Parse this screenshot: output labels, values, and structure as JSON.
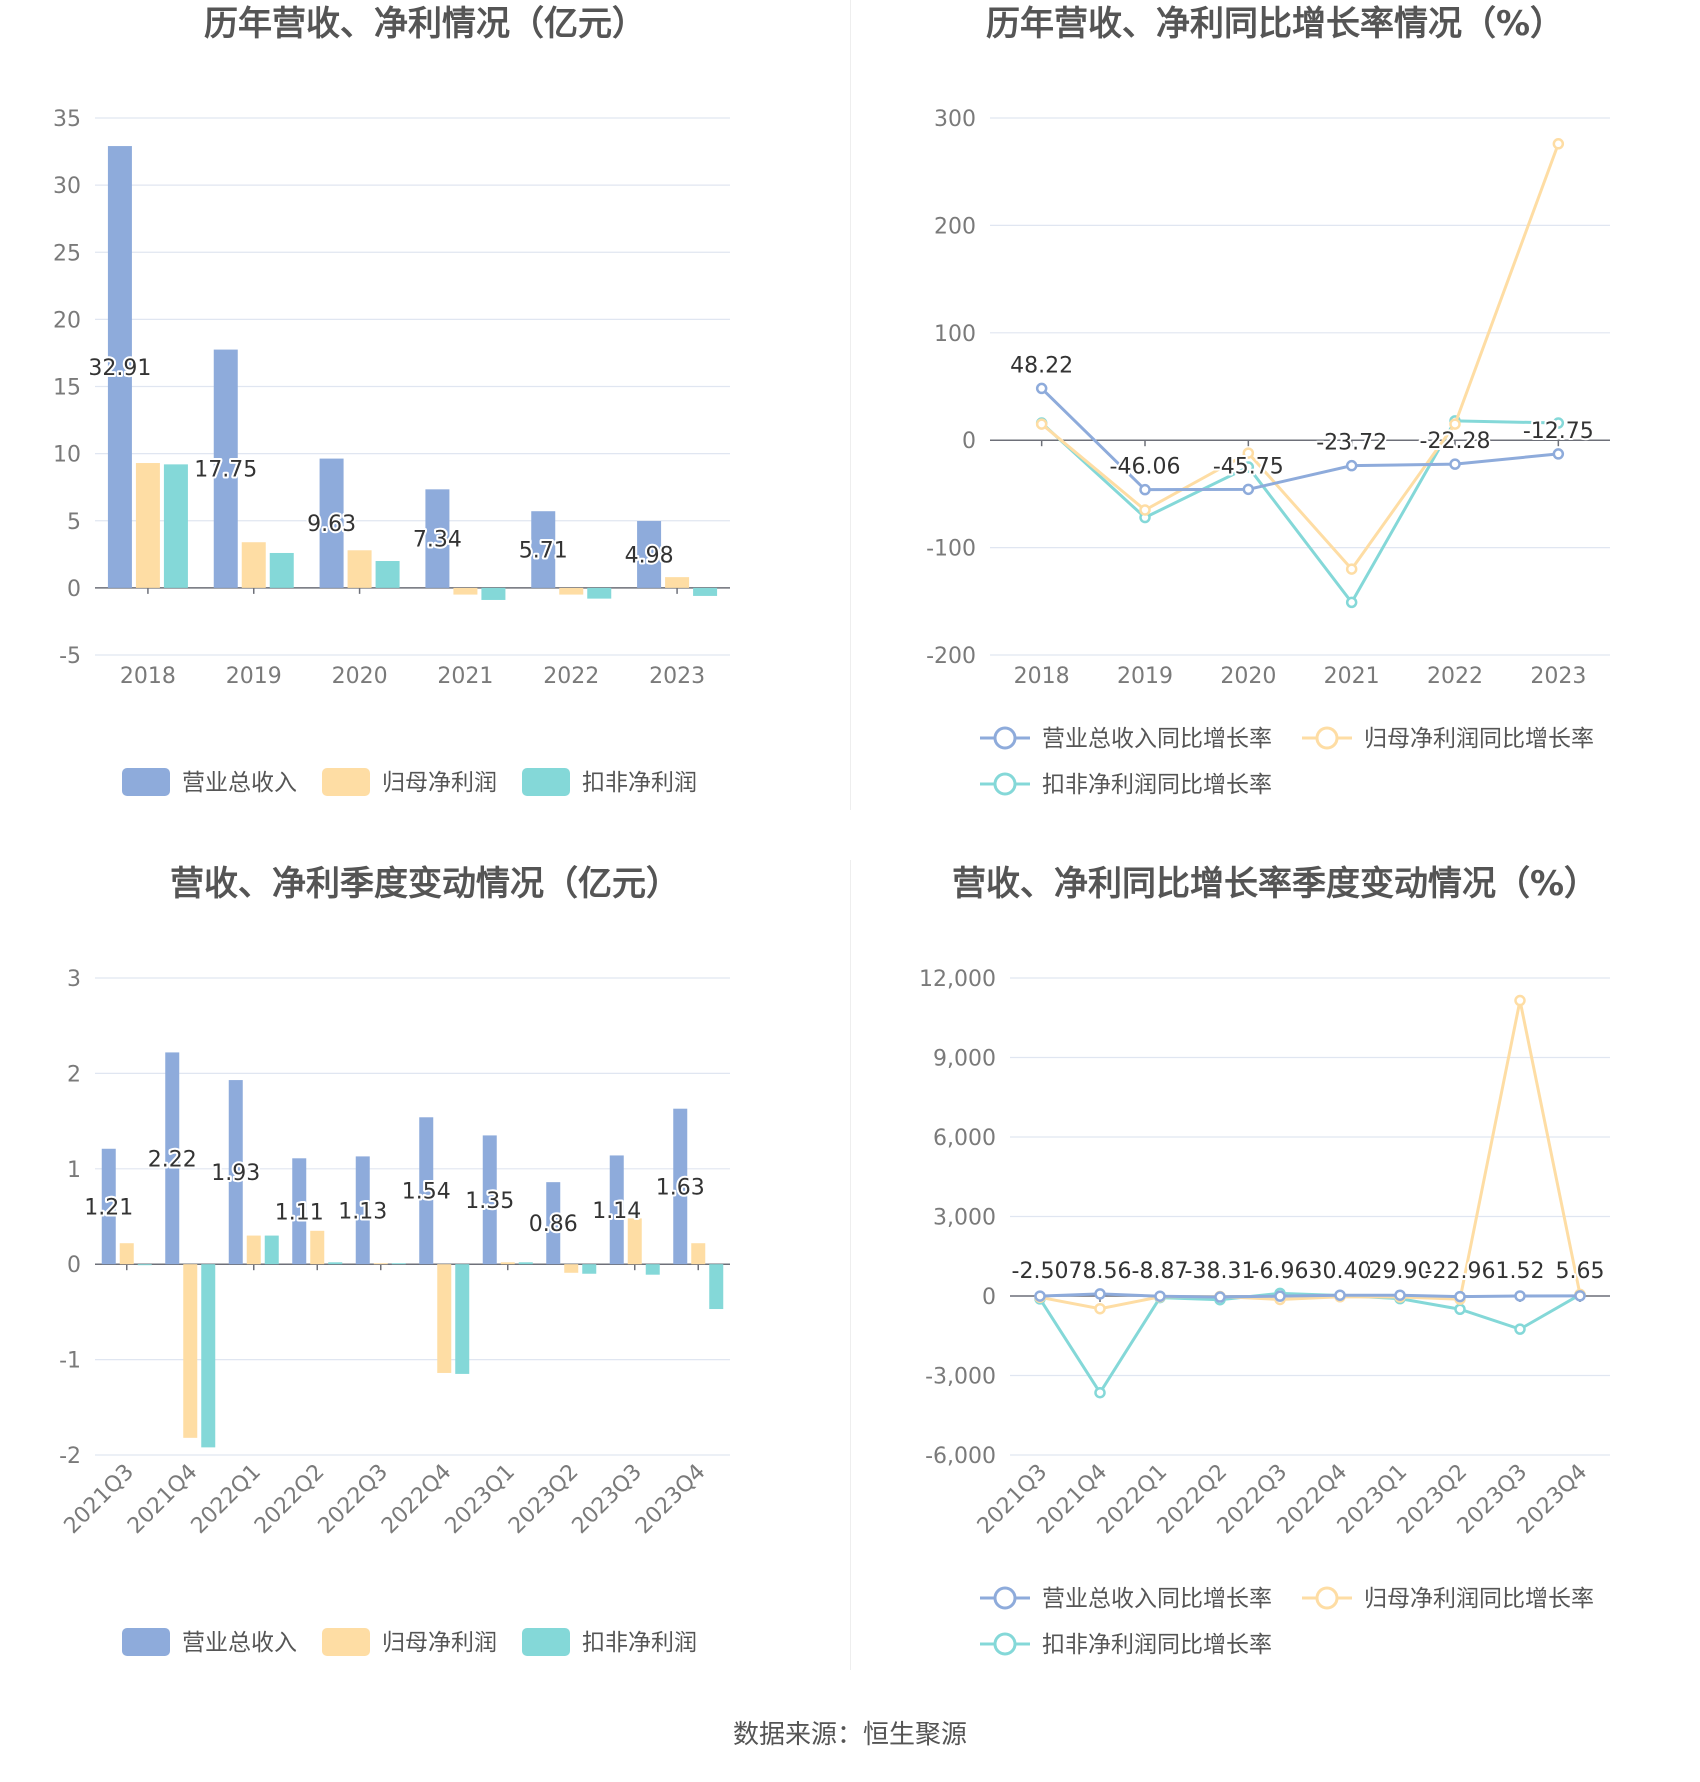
{
  "colors": {
    "revenue": "#8eabdb",
    "net_profit": "#fedda4",
    "deducted_profit": "#84d8d8",
    "grid": "#e0e6f1"
  },
  "source_text": "数据来源：恒生聚源",
  "chart_data": [
    {
      "id": "annual-bar",
      "type": "bar",
      "title": "历年营收、净利情况（亿元）",
      "categories": [
        "2018",
        "2019",
        "2020",
        "2021",
        "2022",
        "2023"
      ],
      "yticks": [
        "35",
        "30",
        "25",
        "20",
        "15",
        "10",
        "5",
        "0",
        "-5"
      ],
      "ylim": [
        -5,
        35
      ],
      "series": [
        {
          "name": "营业总收入",
          "values": [
            32.91,
            17.75,
            9.63,
            7.34,
            5.71,
            4.98
          ],
          "labels": [
            "32.91",
            "17.75",
            "9.63",
            "7.34",
            "5.71",
            "4.98"
          ]
        },
        {
          "name": "归母净利润",
          "values": [
            9.3,
            3.4,
            2.8,
            -0.5,
            -0.5,
            0.8
          ]
        },
        {
          "name": "扣非净利润",
          "values": [
            9.2,
            2.6,
            2.0,
            -0.9,
            -0.8,
            -0.6
          ]
        }
      ],
      "legend_position": "bottom"
    },
    {
      "id": "annual-line",
      "type": "line",
      "title": "历年营收、净利同比增长率情况（%）",
      "categories": [
        "2018",
        "2019",
        "2020",
        "2021",
        "2022",
        "2023"
      ],
      "yticks": [
        "300",
        "200",
        "100",
        "0",
        "-100",
        "-200"
      ],
      "ylim": [
        -200,
        300
      ],
      "series": [
        {
          "name": "营业总收入同比增长率",
          "values": [
            48.22,
            -46.06,
            -45.75,
            -23.72,
            -22.28,
            -12.75
          ],
          "labels": [
            "48.22",
            "-46.06",
            "-45.75",
            "-23.72",
            "-22.28",
            "-12.75"
          ]
        },
        {
          "name": "归母净利润同比增长率",
          "values": [
            15,
            -65,
            -12,
            -120,
            15,
            276
          ]
        },
        {
          "name": "扣非净利润同比增长率",
          "values": [
            16,
            -72,
            -25,
            -151,
            18,
            16
          ]
        }
      ],
      "legend_position": "bottom"
    },
    {
      "id": "quarter-bar",
      "type": "bar",
      "title": "营收、净利季度变动情况（亿元）",
      "categories": [
        "2021Q3",
        "2021Q4",
        "2022Q1",
        "2022Q2",
        "2022Q3",
        "2022Q4",
        "2023Q1",
        "2023Q2",
        "2023Q3",
        "2023Q4"
      ],
      "yticks": [
        "3",
        "2",
        "1",
        "0",
        "-1",
        "-2"
      ],
      "ylim": [
        -2,
        3
      ],
      "series": [
        {
          "name": "营业总收入",
          "values": [
            1.21,
            2.22,
            1.93,
            1.11,
            1.13,
            1.54,
            1.35,
            0.86,
            1.14,
            1.63
          ],
          "labels": [
            "1.21",
            "2.22",
            "1.93",
            "1.11",
            "1.13",
            "1.54",
            "1.35",
            "0.86",
            "1.14",
            "1.63"
          ]
        },
        {
          "name": "归母净利润",
          "values": [
            0.22,
            -1.82,
            0.3,
            0.35,
            0.01,
            -1.14,
            0.02,
            -0.09,
            0.48,
            0.22
          ]
        },
        {
          "name": "扣非净利润",
          "values": [
            0.0,
            -1.92,
            0.3,
            0.02,
            0.01,
            -1.15,
            0.02,
            -0.1,
            -0.11,
            -0.47
          ]
        }
      ],
      "legend_position": "bottom"
    },
    {
      "id": "quarter-line",
      "type": "line",
      "title": "营收、净利同比增长率季度变动情况（%）",
      "categories": [
        "2021Q3",
        "2021Q4",
        "2022Q1",
        "2022Q2",
        "2022Q3",
        "2022Q4",
        "2023Q1",
        "2023Q2",
        "2023Q3",
        "2023Q4"
      ],
      "yticks": [
        "12,000",
        "9,000",
        "6,000",
        "3,000",
        "0",
        "-3,000",
        "-6,000"
      ],
      "ylim": [
        -6000,
        12000
      ],
      "series": [
        {
          "name": "营业总收入同比增长率",
          "values": [
            -2.5,
            78.56,
            -8.87,
            -38.31,
            -6.96,
            30.4,
            29.9,
            -22.96,
            1.52,
            5.65
          ],
          "labels": [
            "-2.50",
            "78.56",
            "-8.87",
            "-38.31",
            "-6.96",
            "30.40",
            "29.90",
            "-22.96",
            "1.52",
            "5.65"
          ]
        },
        {
          "name": "归母净利润同比增长率",
          "values": [
            -50,
            -480,
            -30,
            -20,
            -130,
            -30,
            -40,
            -120,
            11150,
            60
          ]
        },
        {
          "name": "扣非净利润同比增长率",
          "values": [
            -110,
            -3650,
            -60,
            -140,
            100,
            20,
            -100,
            -500,
            -1250,
            50
          ]
        }
      ],
      "legend_position": "bottom"
    }
  ]
}
